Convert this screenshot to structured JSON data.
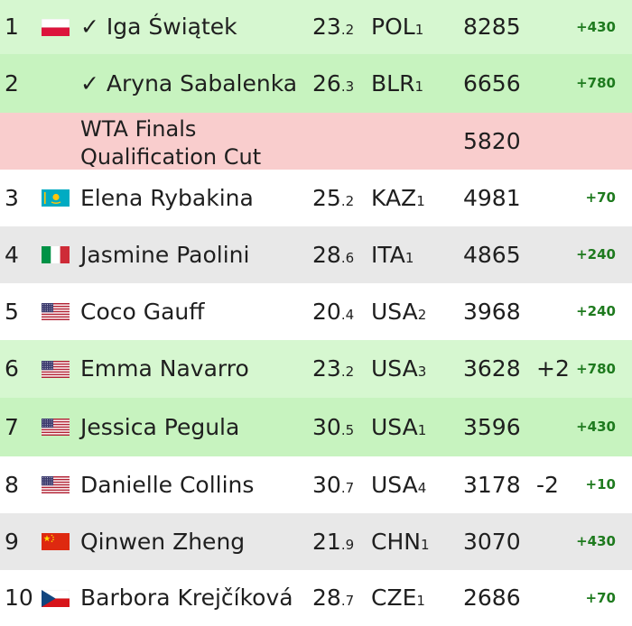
{
  "colors": {
    "qualified_bg": "#d6f7d0",
    "qualified_alt_bg": "#c7f3bf",
    "cut_bg": "#f9cdcd",
    "white_bg": "#ffffff",
    "grey_bg": "#e8e8e8",
    "gain_text": "#1e7a1e"
  },
  "cut_row": {
    "label_line1": "WTA Finals",
    "label_line2": "Qualification Cut",
    "points": "5820"
  },
  "players": [
    {
      "rank": "1",
      "flag": "poland-flag-icon",
      "name": "✓ Iga Świątek",
      "age": "23",
      "age_sub": ".2",
      "country": "POL",
      "country_sub": "1",
      "points": "8285",
      "move": "",
      "gain": "+430"
    },
    {
      "rank": "2",
      "flag": "",
      "name": "✓ Aryna Sabalenka",
      "age": "26",
      "age_sub": ".3",
      "country": "BLR",
      "country_sub": "1",
      "points": "6656",
      "move": "",
      "gain": "+780"
    },
    {
      "rank": "3",
      "flag": "kazakhstan-flag-icon",
      "name": "Elena Rybakina",
      "age": "25",
      "age_sub": ".2",
      "country": "KAZ",
      "country_sub": "1",
      "points": "4981",
      "move": "",
      "gain": "+70"
    },
    {
      "rank": "4",
      "flag": "italy-flag-icon",
      "name": "Jasmine Paolini",
      "age": "28",
      "age_sub": ".6",
      "country": "ITA",
      "country_sub": "1",
      "points": "4865",
      "move": "",
      "gain": "+240"
    },
    {
      "rank": "5",
      "flag": "usa-flag-icon",
      "name": "Coco Gauff",
      "age": "20",
      "age_sub": ".4",
      "country": "USA",
      "country_sub": "2",
      "points": "3968",
      "move": "",
      "gain": "+240"
    },
    {
      "rank": "6",
      "flag": "usa-flag-icon",
      "name": "Emma Navarro",
      "age": "23",
      "age_sub": ".2",
      "country": "USA",
      "country_sub": "3",
      "points": "3628",
      "move": "+2",
      "gain": "+780"
    },
    {
      "rank": "7",
      "flag": "usa-flag-icon",
      "name": "Jessica Pegula",
      "age": "30",
      "age_sub": ".5",
      "country": "USA",
      "country_sub": "1",
      "points": "3596",
      "move": "",
      "gain": "+430"
    },
    {
      "rank": "8",
      "flag": "usa-flag-icon",
      "name": "Danielle Collins",
      "age": "30",
      "age_sub": ".7",
      "country": "USA",
      "country_sub": "4",
      "points": "3178",
      "move": "-2",
      "gain": "+10"
    },
    {
      "rank": "9",
      "flag": "china-flag-icon",
      "name": "Qinwen Zheng",
      "age": "21",
      "age_sub": ".9",
      "country": "CHN",
      "country_sub": "1",
      "points": "3070",
      "move": "",
      "gain": "+430"
    },
    {
      "rank": "10",
      "flag": "czechia-flag-icon",
      "name": "Barbora Krejčíková",
      "age": "28",
      "age_sub": ".7",
      "country": "CZE",
      "country_sub": "1",
      "points": "2686",
      "move": "",
      "gain": "+70"
    }
  ]
}
